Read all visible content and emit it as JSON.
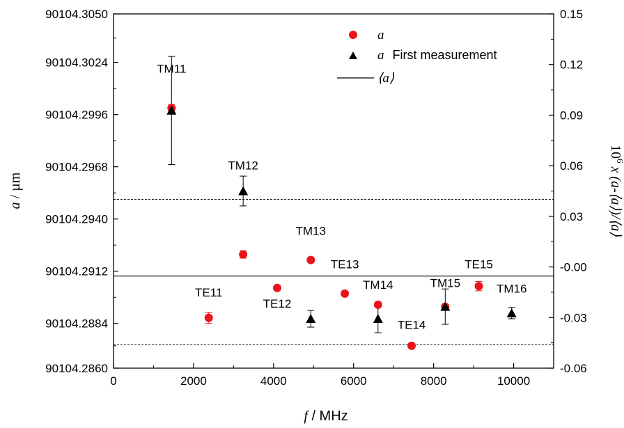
{
  "chart_data": {
    "type": "scatter",
    "xlabel": {
      "var": "f",
      "unit": " / MHz"
    },
    "ylabel_left": {
      "var": "a",
      "unit": " / µm"
    },
    "ylabel_right": {
      "prefix": "10",
      "sup": "6",
      "rest": " x (a-⟨a⟩)/⟨a⟩"
    },
    "xlim": [
      0,
      11000
    ],
    "ylim_left": [
      90104.286,
      90104.305
    ],
    "ylim_right": [
      -0.06,
      0.15
    ],
    "x_ticks": [
      0,
      2000,
      4000,
      6000,
      8000,
      10000
    ],
    "x_tick_labels": [
      "0",
      "2000",
      "4000",
      "6000",
      "8000",
      "10000"
    ],
    "y_left_ticks": [
      90104.286,
      90104.2884,
      90104.2912,
      90104.294,
      90104.2968,
      90104.2996,
      90104.3024,
      90104.305
    ],
    "y_left_tick_labels": [
      "90104.2860",
      "90104.2884",
      "90104.2912",
      "90104.2940",
      "90104.2968",
      "90104.2996",
      "90104.3024",
      "90104.3050"
    ],
    "y_right_ticks": [
      -0.06,
      -0.03,
      0.0,
      0.03,
      0.06,
      0.09,
      0.12,
      0.15
    ],
    "y_right_tick_labels": [
      "-0.06",
      "-0.03",
      "-0.00",
      "0.03",
      "0.06",
      "0.09",
      "0.12",
      "0.15"
    ],
    "legend": {
      "placement": "top-right",
      "entries": [
        {
          "symbol": "circle",
          "label_italic": "a",
          "label_rest": ""
        },
        {
          "symbol": "triangle",
          "label_italic": "a",
          "label_rest": "First measurement"
        },
        {
          "symbol": "line",
          "label_italic": "⟨a⟩",
          "label_rest": ""
        }
      ]
    },
    "series": [
      {
        "symbol": "circle",
        "color": "#e8141b",
        "points": [
          {
            "x": 1450,
            "y": 90104.29995,
            "err": 0.0002
          },
          {
            "x": 2380,
            "y": 90104.2887,
            "err": 0.0003
          },
          {
            "x": 3240,
            "y": 90104.2921,
            "err": 0.0002
          },
          {
            "x": 4090,
            "y": 90104.2903,
            "err": 5e-05
          },
          {
            "x": 4930,
            "y": 90104.2918,
            "err": 8e-05
          },
          {
            "x": 5780,
            "y": 90104.29,
            "err": 4e-05
          },
          {
            "x": 6610,
            "y": 90104.2894,
            "err": 6e-05
          },
          {
            "x": 7450,
            "y": 90104.2872,
            "err": 3e-05
          },
          {
            "x": 8290,
            "y": 90104.2893,
            "err": 0.00012
          },
          {
            "x": 9130,
            "y": 90104.2904,
            "err": 0.00025
          }
        ]
      },
      {
        "symbol": "triangle",
        "color": "#000000",
        "points": [
          {
            "x": 1450,
            "y": 90104.29982,
            "err": 0.0029
          },
          {
            "x": 3240,
            "y": 90104.2955,
            "err": 0.0008
          },
          {
            "x": 4930,
            "y": 90104.28865,
            "err": 0.00045
          },
          {
            "x": 6610,
            "y": 90104.28865,
            "err": 0.00075
          },
          {
            "x": 8290,
            "y": 90104.2893,
            "err": 0.00095
          },
          {
            "x": 9950,
            "y": 90104.28895,
            "err": 0.0003
          }
        ]
      }
    ],
    "hlines": [
      {
        "y": 90104.29094,
        "style": "solid"
      },
      {
        "y": 90104.29505,
        "style": "dashed"
      },
      {
        "y": 90104.28725,
        "style": "dashed"
      }
    ],
    "point_labels": [
      {
        "text": "TM11",
        "x": 1450,
        "y": 90104.30185
      },
      {
        "text": "TM12",
        "x": 3240,
        "y": 90104.29665
      },
      {
        "text": "TM13",
        "x": 4930,
        "y": 90104.29315
      },
      {
        "text": "TE11",
        "x": 2380,
        "y": 90104.28985
      },
      {
        "text": "TE12",
        "x": 4090,
        "y": 90104.28925
      },
      {
        "text": "TE13",
        "x": 5780,
        "y": 90104.29135
      },
      {
        "text": "TM14",
        "x": 6610,
        "y": 90104.29025
      },
      {
        "text": "TE14",
        "x": 7450,
        "y": 90104.2881
      },
      {
        "text": "TM15",
        "x": 8290,
        "y": 90104.29035
      },
      {
        "text": "TE15",
        "x": 9130,
        "y": 90104.29135
      },
      {
        "text": "TM16",
        "x": 9950,
        "y": 90104.29005
      }
    ]
  }
}
